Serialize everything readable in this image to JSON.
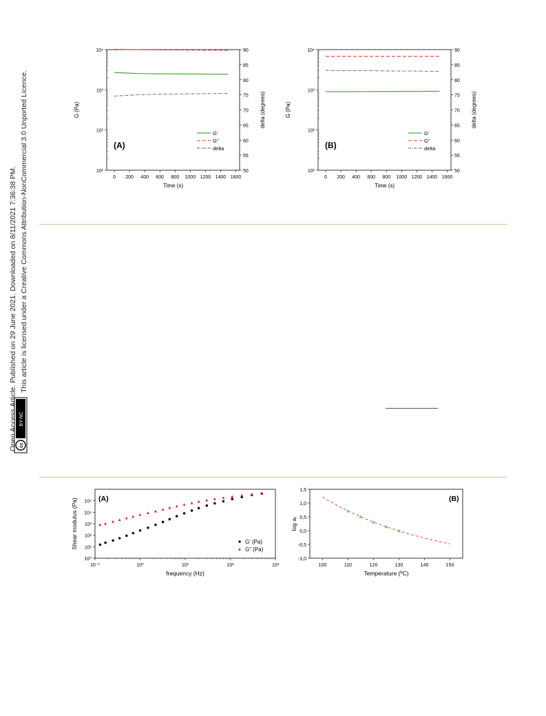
{
  "margin_text": {
    "line1": "Open Access Article. Published on 29 June 2021. Downloaded on 8/11/2021 7:36:38 PM.",
    "line2": "This article is licensed under a Creative Commons Attribution-NonCommercial 3.0 Unported Licence.",
    "badge_cc": "cc",
    "badge_license": "BY-NC"
  },
  "colors": {
    "g_prime_time": "#4caf3a",
    "g_double_prime_time": "#e53030",
    "delta_time": "#555555",
    "g_prime_freq": "#111111",
    "g_double_prime_freq": "#dd2222",
    "shift_curve": "#e85a5a",
    "shift_points": "#7cc35a",
    "rule": "#c9c9a6"
  },
  "chart_data": [
    {
      "type": "line",
      "panel_label": "(A)",
      "xlabel": "Time (s)",
      "ylabel": "G (Pa)",
      "y2label": "delta (degrees)",
      "xlim": [
        -100,
        1650
      ],
      "xticks": [
        "0",
        "200",
        "400",
        "600",
        "800",
        "1000",
        "1200",
        "1400",
        "1600"
      ],
      "ylim_log": [
        10,
        10000
      ],
      "yticks": [
        "10¹",
        "10²",
        "10³",
        "10⁴"
      ],
      "y2lim": [
        50,
        90
      ],
      "y2ticks": [
        "50",
        "55",
        "60",
        "65",
        "70",
        "75",
        "80",
        "85",
        "90"
      ],
      "legend_position": "bottom-right",
      "series": [
        {
          "name": "G'",
          "axis": "left",
          "x": [
            0,
            300,
            600,
            900,
            1200,
            1500
          ],
          "y": [
            2700,
            2550,
            2500,
            2480,
            2460,
            2450
          ]
        },
        {
          "name": "G\"",
          "axis": "left",
          "x": [
            0,
            300,
            600,
            900,
            1200,
            1500
          ],
          "y": [
            10200,
            9950,
            9850,
            9750,
            9700,
            9650
          ]
        },
        {
          "name": "delta",
          "axis": "right",
          "x": [
            0,
            300,
            600,
            900,
            1200,
            1500
          ],
          "y": [
            74.6,
            75.0,
            75.2,
            75.3,
            75.4,
            75.5
          ]
        }
      ]
    },
    {
      "type": "line",
      "panel_label": "(B)",
      "xlabel": "Time (s)",
      "ylabel": "G (Pa)",
      "y2label": "delta (degrees)",
      "xlim": [
        -100,
        1650
      ],
      "xticks": [
        "0",
        "200",
        "400",
        "600",
        "800",
        "1000",
        "1200",
        "1400",
        "1600"
      ],
      "ylim_log": [
        10,
        10000
      ],
      "yticks": [
        "10¹",
        "10²",
        "10³",
        "10⁴"
      ],
      "y2lim": [
        50,
        90
      ],
      "y2ticks": [
        "50",
        "55",
        "60",
        "65",
        "70",
        "75",
        "80",
        "85",
        "90"
      ],
      "legend_position": "bottom-right",
      "series": [
        {
          "name": "G'",
          "axis": "left",
          "x": [
            0,
            300,
            600,
            900,
            1200,
            1500
          ],
          "y": [
            900,
            900,
            905,
            910,
            915,
            920
          ]
        },
        {
          "name": "G\"",
          "axis": "left",
          "x": [
            0,
            300,
            600,
            900,
            1200,
            1500
          ],
          "y": [
            6800,
            6800,
            6800,
            6800,
            6800,
            6800
          ]
        },
        {
          "name": "delta",
          "axis": "right",
          "x": [
            0,
            300,
            600,
            900,
            1200,
            1500
          ],
          "y": [
            83.1,
            83.0,
            83.0,
            82.9,
            82.9,
            82.8
          ]
        }
      ]
    },
    {
      "type": "scatter",
      "panel_label": "(A)",
      "xlabel": "frequency (Hz)",
      "ylabel": "Shear modulus (Pa)",
      "xlim_log": [
        0.1,
        1000
      ],
      "xticks": [
        "10⁻¹",
        "10⁰",
        "10¹",
        "10²",
        "10³"
      ],
      "ylim_log": [
        1,
        1000000
      ],
      "yticks": [
        "10⁰",
        "10¹",
        "10²",
        "10³",
        "10⁴",
        "10⁵"
      ],
      "legend_position": "bottom-right",
      "series": [
        {
          "name": "G' (Pa)",
          "x": [
            0.13,
            0.17,
            0.25,
            0.35,
            0.5,
            0.7,
            1.0,
            1.5,
            2.2,
            3.2,
            4.5,
            6.5,
            9.5,
            14,
            20,
            30,
            45,
            70,
            110,
            180,
            300,
            500
          ],
          "y": [
            15,
            22,
            35,
            55,
            90,
            150,
            260,
            450,
            800,
            1400,
            2500,
            4500,
            8000,
            14000,
            23000,
            38000,
            60000,
            90000,
            140000,
            210000,
            320000,
            420000
          ]
        },
        {
          "name": "G\" (Pa)",
          "x": [
            0.13,
            0.17,
            0.25,
            0.35,
            0.5,
            0.7,
            1.0,
            1.5,
            2.2,
            3.2,
            4.5,
            6.5,
            9.5,
            14,
            20,
            30,
            45,
            70,
            110,
            180,
            300,
            500
          ],
          "y": [
            800,
            1000,
            1500,
            2100,
            3000,
            4200,
            6000,
            8500,
            12000,
            17000,
            24000,
            33000,
            46000,
            62000,
            82000,
            110000,
            140000,
            180000,
            230000,
            290000,
            350000,
            400000
          ]
        }
      ]
    },
    {
      "type": "scatter",
      "panel_label": "(B)",
      "xlabel": "Temperature (ºC)",
      "ylabel": "log aₜ",
      "xlim": [
        95,
        155
      ],
      "xticks": [
        "100",
        "110",
        "120",
        "130",
        "140",
        "150"
      ],
      "ylim": [
        -1.0,
        1.5
      ],
      "yticks": [
        "-1,0",
        "-0,5",
        "0,0",
        "0,5",
        "1,0",
        "1,5"
      ],
      "series": [
        {
          "name": "fit",
          "style": "dashed-line",
          "x": [
            100,
            105,
            110,
            115,
            120,
            125,
            130,
            135,
            140,
            145,
            150
          ],
          "y": [
            1.22,
            0.95,
            0.71,
            0.5,
            0.31,
            0.14,
            -0.01,
            -0.15,
            -0.27,
            -0.38,
            -0.48
          ]
        },
        {
          "name": "data",
          "style": "markers",
          "x": [
            110,
            115,
            120,
            125,
            130
          ],
          "y": [
            0.71,
            0.5,
            0.31,
            0.14,
            -0.01
          ]
        }
      ]
    }
  ]
}
